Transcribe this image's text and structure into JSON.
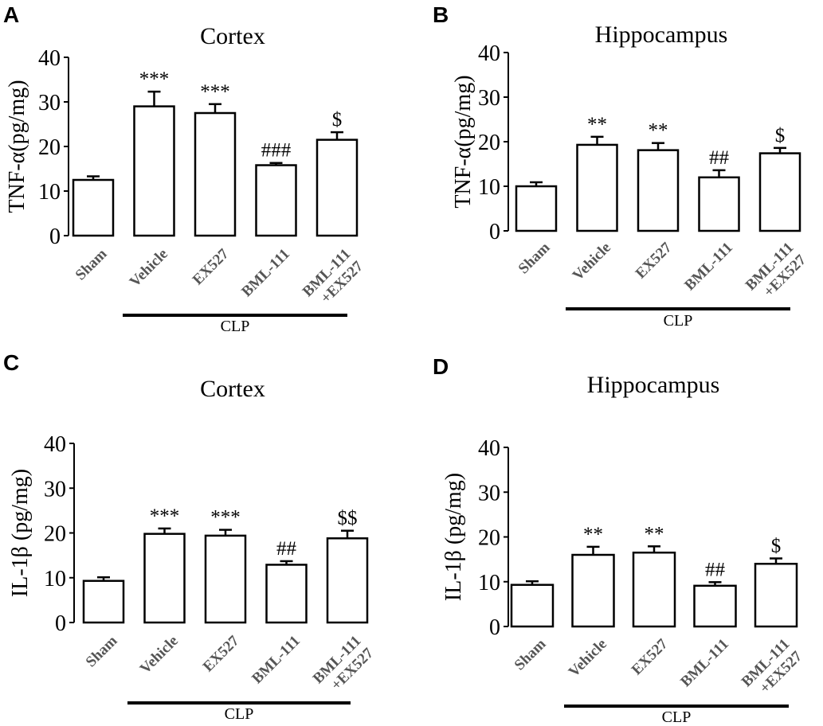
{
  "chart_data": [
    {
      "panel": "A",
      "type": "bar",
      "title": "Cortex",
      "ylabel": "TNF-α(pg/mg)",
      "ylim": [
        0,
        40
      ],
      "yticks": [
        "0",
        "10",
        "20",
        "30",
        "40"
      ],
      "categories": [
        "Sham",
        "Vehicle",
        "EX527",
        "BML-111",
        "BML-111\n+EX527"
      ],
      "values": [
        12.5,
        29,
        27.5,
        15.8,
        21.5
      ],
      "errors": [
        0.8,
        3.3,
        2.0,
        0.5,
        1.7
      ],
      "annotations": [
        "",
        "***",
        "***",
        "###",
        "$"
      ],
      "group_label": "CLP"
    },
    {
      "panel": "B",
      "type": "bar",
      "title": "Hippocampus",
      "ylabel": "TNF-α(pg/mg)",
      "ylim": [
        0,
        40
      ],
      "yticks": [
        "0",
        "10",
        "20",
        "30",
        "40"
      ],
      "categories": [
        "Sham",
        "Vehicle",
        "EX527",
        "BML-111",
        "BML-111\n+EX527"
      ],
      "values": [
        10,
        19.3,
        18.1,
        12,
        17.4
      ],
      "errors": [
        0.9,
        1.8,
        1.6,
        1.6,
        1.2
      ],
      "annotations": [
        "",
        "**",
        "**",
        "##",
        "$"
      ],
      "group_label": "CLP"
    },
    {
      "panel": "C",
      "type": "bar",
      "title": "Cortex",
      "ylabel": "IL-1β (pg/mg)",
      "ylim": [
        0,
        40
      ],
      "yticks": [
        "0",
        "10",
        "20",
        "30",
        "40"
      ],
      "categories": [
        "Sham",
        "Vehicle",
        "EX527",
        "BML-111",
        "BML-111\n+EX527"
      ],
      "values": [
        9.3,
        19.8,
        19.4,
        12.9,
        18.8
      ],
      "errors": [
        0.8,
        1.2,
        1.3,
        0.8,
        1.7
      ],
      "annotations": [
        "",
        "***",
        "***",
        "##",
        "$$"
      ],
      "group_label": "CLP"
    },
    {
      "panel": "D",
      "type": "bar",
      "title": "Hippocampus",
      "ylabel": "IL-1β (pg/mg)",
      "ylim": [
        0,
        40
      ],
      "yticks": [
        "0",
        "10",
        "20",
        "30",
        "40"
      ],
      "categories": [
        "Sham",
        "Vehicle",
        "EX527",
        "BML-111",
        "BML-111\n+EX527"
      ],
      "values": [
        9.3,
        16,
        16.5,
        9.1,
        14
      ],
      "errors": [
        0.8,
        1.8,
        1.4,
        0.8,
        1.2
      ],
      "annotations": [
        "",
        "**",
        "**",
        "##",
        "$"
      ],
      "group_label": "CLP"
    }
  ]
}
